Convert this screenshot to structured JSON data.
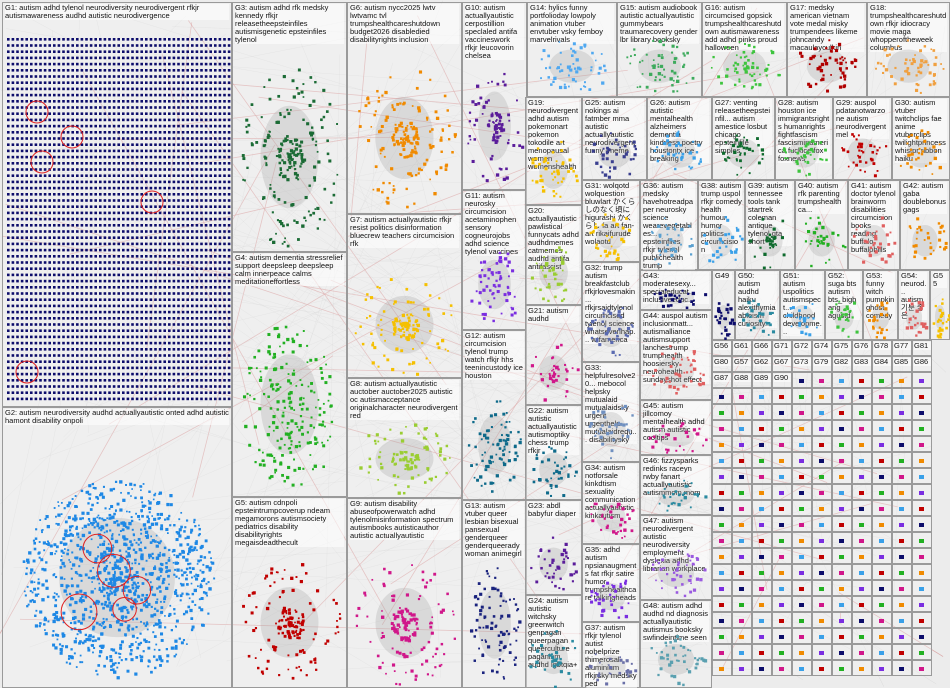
{
  "groups": [
    {
      "id": "G1",
      "label": "G1: autism adhd tylenol neurodiversity neurodivergent rfkjr autismawareness audhd autistic neurodivergence",
      "color": "#0d0d6b",
      "style": "grid"
    },
    {
      "id": "G2",
      "label": "G2: autism neurodiversity audhd actuallyautistic onted adhd autistic hamont disability onpoli",
      "color": "#1e88e5",
      "style": "big"
    },
    {
      "id": "G3",
      "label": "G3: autism adhd rfk medsky kennedy rfkjr releasetheepsteinfiles autismisgenetic epsteinfiles tylenol",
      "color": "#1b6b35",
      "style": "ring"
    },
    {
      "id": "G4",
      "label": "G4: autism dementia stressrelief support deepsleep deepsleep calm innerpeace calms meditationeffortless",
      "color": "#22b022",
      "style": "cloud"
    },
    {
      "id": "G5",
      "label": "G5: autism cdnpoli epsteintrumpcoverup ndeam megamorons autismsociety pediatrics disability disabilityrights megaisdeadthecult",
      "color": "#c00000",
      "style": "ring"
    },
    {
      "id": "G6",
      "label": "G6: autism nycc2025 lwtv lwtvamc tvl trumpshealthcareshutdown budget2026 disabledied disabilityrights inclusion",
      "color": "#f08a00",
      "style": "ring"
    },
    {
      "id": "G7",
      "label": "G7: autism actuallyautistic rfkjr resist politics disinformation bluecrew teachers circumcision rfk",
      "color": "#f5c000",
      "style": "ring"
    },
    {
      "id": "G8",
      "label": "G8: autism actuallyautistic auctober auctober2025 autistic oc autismacceptance originalcharacter neurodivergent red",
      "color": "#9acd32",
      "style": "ring"
    },
    {
      "id": "G9",
      "label": "G9: autism disability abuseofpowerwatch adhd tylenolmisinformation spectrum autismbooks autisticauthor autistic actuallyautistic",
      "color": "#d0178a",
      "style": "ring"
    },
    {
      "id": "G10",
      "label": "G10: autism actuallyautistic cerpostillion speclaled antifa vaccineswork rfkjr leucovorin chelsea",
      "color": "#5a1c9a",
      "style": "ring"
    },
    {
      "id": "G11",
      "label": "G11: autism neurosky circumcision acetaminophen sensory cogneurojobs adhd science tylenol vaccines",
      "color": "#7a2ee0",
      "style": "cloud"
    },
    {
      "id": "G12",
      "label": "G12: autism circumcision tylenol trump watch rfkjr hhs teenincustody ice houston",
      "color": "#0e6a8a",
      "style": "cloud"
    },
    {
      "id": "G13",
      "label": "G13: autism vtuber queer lesbian bisexual pansexual genderqueer genderqueerady woman animegirl",
      "color": "#1a237e",
      "style": "cloud"
    },
    {
      "id": "G14",
      "label": "G14: hylics funny portfolioday lowpoly animation vtuber envtuber vsky femboy marvelrivals",
      "color": "#4fa8f0",
      "style": "cloud"
    },
    {
      "id": "G15",
      "label": "G15: autism audiobook autistic actuallyautistic gummybears traumarecovery gender lbr library booksky",
      "color": "#3daa5c",
      "style": "cloud"
    },
    {
      "id": "G16",
      "label": "G16: autism circumcised gopsick trumpshealthcareshutdown autismawareness add adhd pinks proud halloween",
      "color": "#3ec43e",
      "style": "cloud"
    },
    {
      "id": "G17",
      "label": "G17: medsky american vietnam vote medal misky trumpendees likeme johncandy macaulayculkin",
      "color": "#b00000",
      "style": "cloud"
    },
    {
      "id": "G18",
      "label": "G18: trumpshealthcareshutdown rfkjr idiocracy movie maga whopperoftheweek columbus",
      "color": "#f0a040",
      "style": "cloud"
    },
    {
      "id": "G19",
      "label": "G19: neurodivergent adhd autism pokemonart pokemon tokodile art menopausal women womenshealth",
      "color": "#f5c000",
      "style": "cloud"
    },
    {
      "id": "G25",
      "label": "G25: autism nokings ai fatmber mma autistic actuallyautistic neurodivergent funny -meme",
      "color": "#3a3f8f",
      "style": "cloud"
    },
    {
      "id": "G26",
      "label": "G26: autism autistic mentalhealth alzheimers dementia kindness poetry houstontx ice breaking",
      "color": "#3aa0e8",
      "style": "cloud"
    },
    {
      "id": "G27",
      "label": "G27: venting releasetheepsteinfil... autism amestice losbut chicago epsteinfile simples",
      "color": "#0f6b2e",
      "style": "cloud"
    },
    {
      "id": "G28",
      "label": "G28: autism houston ice immigrantsrights humanrights fightfascism fascisminamerica fuckice fox foxnews",
      "color": "#3ec43e",
      "style": "cloud"
    },
    {
      "id": "G29",
      "label": "G29: auspol pdatanotwarzone autism neurodivergentmel",
      "color": "#c00000",
      "style": "cloud"
    },
    {
      "id": "G30",
      "label": "G30: autism vtuber twitchclips fae anime vtuberclips twilightprincess whistpr ribbon haiku",
      "color": "#f08a00",
      "style": "cloud"
    },
    {
      "id": "G20",
      "label": "G20: actuallyautistic pawlistical funnycats adhd audhdmemes catmemes audhd antifa antifascist",
      "color": "#9acd32",
      "style": "cloud"
    },
    {
      "id": "G31",
      "label": "G31: wolqotd wolquestion bluwlart かくらしのなく頃に higurashi かくらし fa art fan-art rikaifurude wolaotd",
      "color": "#f5c000",
      "style": "cloud"
    },
    {
      "id": "G36",
      "label": "G36: autism medsky havehotreadpaper neurosky science wearevegetables... epsteinfiles rfkjr tylenol publichealth trump",
      "color": "#5aa0d0",
      "style": "cloud"
    },
    {
      "id": "G38",
      "label": "G38: autism trump uspol rfkjr comedy health humour humor politics circumcision",
      "color": "#3aa0e8",
      "style": "cloud"
    },
    {
      "id": "G39",
      "label": "G39: autism tennessee tools tank startrek coleman antique tylenol gta short",
      "color": "#0f6b2e",
      "style": "ring"
    },
    {
      "id": "G40",
      "label": "G40: autism rfk parenting trumpshealthca...",
      "color": "#22b022",
      "style": "ring"
    },
    {
      "id": "G41",
      "label": "G41: autism doctor tylenol brainworm disabilities circumcision books reading buffalo buffalobills",
      "color": "#e06060",
      "style": "cloud"
    },
    {
      "id": "G42",
      "label": "G42: autism gaba doublebonus gags",
      "color": "#f08a00",
      "style": "cloud"
    },
    {
      "id": "G21",
      "label": "G21: autism audhd",
      "color": "#d0178a",
      "style": "ring"
    },
    {
      "id": "G22",
      "label": "G22: autism autistic actuallyautistic autismoptiky chess trump rfkjr",
      "color": "#0e6a8a",
      "style": "cloud"
    },
    {
      "id": "G23",
      "label": "G23: abdl babyfur diaper",
      "color": "#5a1c9a",
      "style": "cloud"
    },
    {
      "id": "G24",
      "label": "G24: autism autistic witchsky greenwitch genpagan queerpagan queerculture paganism audhd lgbtqia+",
      "color": "#2a8aa0",
      "style": "ring"
    },
    {
      "id": "G32",
      "label": "G32: trump autism breakfastclub rfkjrlovesmakin... rfkjrsaidtylenol circumcised tylenol science whatsevenhap... wtfamerica",
      "color": "#5a6ab0",
      "style": "cloud"
    },
    {
      "id": "G33",
      "label": "G33: helpfulresolve20... mebocol helpsky mutualaid mutualaidsky urgent urgenthelp mutualaidrequ... disabilitysky",
      "color": "#7090c0",
      "style": "cloud"
    },
    {
      "id": "G34",
      "label": "G34: autism notforsale kinkdtism sexuality communication actuallyautistic kinkautism",
      "color": "#d0178a",
      "style": "cloud"
    },
    {
      "id": "G35",
      "label": "G35: adhd autism npsianaugments fat rfkjr satire humor trumpshealthcare talkingheads",
      "color": "#7a2ee0",
      "style": "cloud"
    },
    {
      "id": "G37",
      "label": "G37: autism rfkjr tylenol autist nobelprize thimerosal aluminium rfkjrsky medsky ped",
      "color": "#6a70a8",
      "style": "cloud"
    },
    {
      "id": "G43",
      "label": "G43: moderatesexy... specialeducat... inclusiveeduc...",
      "color": "#0d0d6b",
      "style": "cloud"
    },
    {
      "id": "G44",
      "label": "G44: auspol autism inclusionmatt... autismalliance autismsupport lanchestrump trumphealth hoosiersky neurohealth sundayshot effect",
      "color": "#e06060",
      "style": "cloud"
    },
    {
      "id": "G45",
      "label": "G45: autism jillcomoy mentalhealth adhd autism autistic cooltips",
      "color": "#d0178a",
      "style": "cloud"
    },
    {
      "id": "G46",
      "label": "G46: fizzysparks redinks raceyn rwby fanart actuallyautistic autismmom mom",
      "color": "#2a8aa0",
      "style": "cloud"
    },
    {
      "id": "G47",
      "label": "G47: autism neurodivergent autistic neurodiversity employment dyslexia adhd librarian workplace",
      "color": "#9a5ae0",
      "style": "cloud"
    },
    {
      "id": "G48",
      "label": "G48: autism adhd audhd nd diagnosis actuallyautistic autismus booksky swfindeintime seen",
      "color": "#5aa0b0",
      "style": "cloud"
    },
    {
      "id": "G49",
      "label": "G49",
      "color": "#0d0d6b",
      "style": "cloud"
    },
    {
      "id": "G50",
      "label": "G50: autism audhd haiku alexithymia ableism curiosity...",
      "color": "#2a8aa0",
      "style": "cloud"
    },
    {
      "id": "G51",
      "label": "G51: autism uspolitics autismspect... childhood developme...",
      "color": "#3aa0e8",
      "style": "cloud"
    },
    {
      "id": "G52",
      "label": "G52: suga bts autism bts_bigbang agustd",
      "color": "#3ec43e",
      "style": "cloud"
    },
    {
      "id": "G53",
      "label": "G53: funny witch pumpkin ghost comedy",
      "color": "#f08a00",
      "style": "cloud"
    },
    {
      "id": "G54",
      "label": "G54: neurod... autism 기분 좋은 ...",
      "color": "#e06060",
      "style": "cloud"
    },
    {
      "id": "G55",
      "label": "G55",
      "color": "#f5c000",
      "style": "cloud"
    }
  ],
  "small_groups": [
    "G56",
    "G61",
    "G66",
    "G71",
    "G72",
    "G74",
    "G75",
    "G76",
    "G78",
    "G77",
    "G81",
    "G80",
    "G57",
    "G62",
    "G67",
    "G73",
    "G79",
    "G82",
    "G83",
    "G84",
    "G85",
    "G86",
    "G87",
    "G88",
    "G89",
    "G90"
  ],
  "edge_color": "#d08080"
}
